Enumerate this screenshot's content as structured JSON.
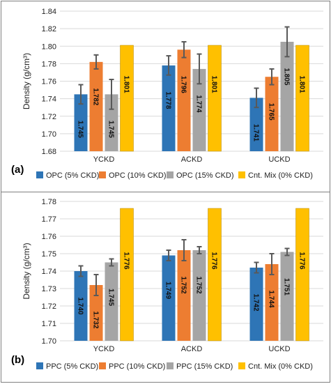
{
  "colors": {
    "s1": "#2e75b6",
    "s2": "#ed7d31",
    "s3": "#a5a5a5",
    "s4": "#ffc000",
    "grid": "#d9d9d9",
    "err": "#595959"
  },
  "chart_data": [
    {
      "type": "bar",
      "panel": "(a)",
      "ylabel": "Density (g/cm³)",
      "ylim": [
        1.68,
        1.84
      ],
      "ytick_step": 0.02,
      "ytick_labels": [
        "1.68",
        "1.70",
        "1.72",
        "1.74",
        "1.76",
        "1.78",
        "1.80",
        "1.82",
        "1.84"
      ],
      "grid": true,
      "legend_position": "bottom",
      "categories": [
        "YCKD",
        "ACKD",
        "UCKD"
      ],
      "series": [
        {
          "name": "OPC (5% CKD)",
          "values": [
            1.745,
            1.778,
            1.741
          ],
          "errors": [
            0.011,
            0.011,
            0.011
          ],
          "labels": [
            "1.745",
            "1.778",
            "1.741"
          ]
        },
        {
          "name": "OPC (10% CKD)",
          "values": [
            1.782,
            1.796,
            1.765
          ],
          "errors": [
            0.008,
            0.009,
            0.009
          ],
          "labels": [
            "1.782",
            "1.796",
            "1.765"
          ]
        },
        {
          "name": "OPC (15% CKD)",
          "values": [
            1.745,
            1.774,
            1.805
          ],
          "errors": [
            0.017,
            0.017,
            0.017
          ],
          "labels": [
            "1.745",
            "1.774",
            "1.805"
          ]
        },
        {
          "name": "Cnt. Mix (0% CKD)",
          "values": [
            1.801,
            1.801,
            1.801
          ],
          "errors": [
            0,
            0,
            0
          ],
          "labels": [
            "1.801",
            "1.801",
            "1.801"
          ]
        }
      ]
    },
    {
      "type": "bar",
      "panel": "(b)",
      "ylabel": "Density (g/cm³)",
      "ylim": [
        1.7,
        1.78
      ],
      "ytick_step": 0.01,
      "ytick_labels": [
        "1.70",
        "1.71",
        "1.72",
        "1.73",
        "1.74",
        "1.75",
        "1.76",
        "1.77",
        "1.78"
      ],
      "grid": true,
      "legend_position": "bottom",
      "categories": [
        "YCKD",
        "ACKD",
        "UCKD"
      ],
      "series": [
        {
          "name": "PPC (5% CKD)",
          "values": [
            1.74,
            1.749,
            1.742
          ],
          "errors": [
            0.003,
            0.003,
            0.003
          ],
          "labels": [
            "1.740",
            "1.749",
            "1.742"
          ]
        },
        {
          "name": "PPC (10% CKD)",
          "values": [
            1.732,
            1.752,
            1.744
          ],
          "errors": [
            0.006,
            0.006,
            0.006
          ],
          "labels": [
            "1.732",
            "1.752",
            "1.744"
          ]
        },
        {
          "name": "PPC (15% CKD)",
          "values": [
            1.745,
            1.752,
            1.751
          ],
          "errors": [
            0.002,
            0.002,
            0.002
          ],
          "labels": [
            "1.745",
            "1.752",
            "1.751"
          ]
        },
        {
          "name": "Cnt. Mix (0% CKD)",
          "values": [
            1.776,
            1.776,
            1.776
          ],
          "errors": [
            0,
            0,
            0
          ],
          "labels": [
            "1.776",
            "1.776",
            "1.776"
          ]
        }
      ]
    }
  ]
}
